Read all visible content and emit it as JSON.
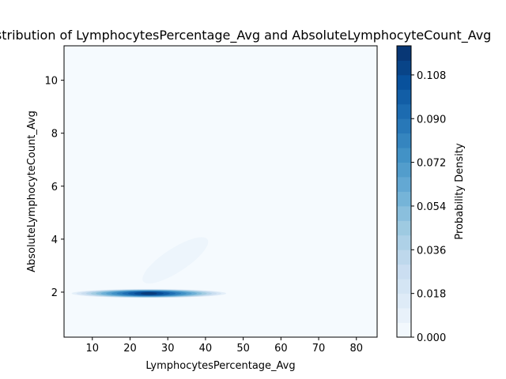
{
  "chart_data": {
    "type": "contour",
    "title": "Joint Distribution of LymphocytesPercentage_Avg and AbsoluteLymphocyteCount_Avg",
    "xlabel": "LymphocytesPercentage_Avg",
    "ylabel": "AbsoluteLymphocyteCount_Avg",
    "xlim": [
      2.5,
      85.5
    ],
    "ylim": [
      0.3,
      11.3
    ],
    "xticks": [
      10,
      20,
      30,
      40,
      50,
      60,
      70,
      80
    ],
    "yticks": [
      2,
      4,
      6,
      8,
      10
    ],
    "colorbar": {
      "label": "Probability Density",
      "min": 0.0,
      "max": 0.12,
      "ticks": [
        0.0,
        0.018,
        0.036,
        0.054,
        0.072,
        0.09,
        0.108
      ],
      "tick_labels": [
        "0.000",
        "0.018",
        "0.036",
        "0.054",
        "0.072",
        "0.090",
        "0.108"
      ],
      "levels": 20,
      "colormap": "Blues"
    },
    "regions": [
      {
        "shape": "narrow-horizontal-band",
        "center": [
          25,
          1.95
        ],
        "x_range": [
          7,
          48
        ],
        "peak_density": 0.115
      },
      {
        "shape": "faint-tilted-ellipse",
        "center": [
          32,
          3.2
        ],
        "x_range": [
          22,
          43
        ],
        "y_range": [
          2.5,
          3.9
        ],
        "peak_density": 0.006
      }
    ],
    "grid": false
  }
}
